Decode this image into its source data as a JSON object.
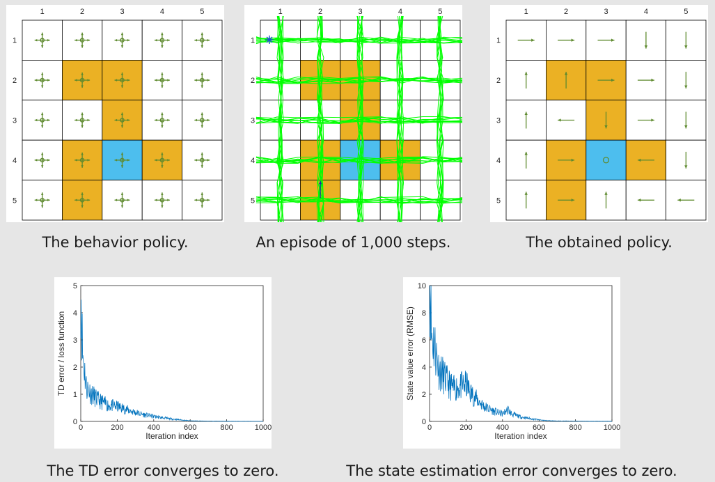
{
  "colors": {
    "forbidden": "#EBB124",
    "target": "#4DBEEE",
    "arrow": "#5E8A2E",
    "trajectory": "#00FF00",
    "curve": "#0072BD",
    "background": "#E6E6E6",
    "grid_line": "#000000"
  },
  "grid": {
    "size": 5,
    "col_labels": [
      "1",
      "2",
      "3",
      "4",
      "5"
    ],
    "row_labels": [
      "1",
      "2",
      "3",
      "4",
      "5"
    ],
    "forbidden_cells": [
      [
        2,
        2
      ],
      [
        2,
        3
      ],
      [
        3,
        3
      ],
      [
        4,
        2
      ],
      [
        4,
        4
      ],
      [
        5,
        2
      ]
    ],
    "target_cell": [
      4,
      3
    ]
  },
  "panels": {
    "behavior": {
      "caption": "The behavior policy."
    },
    "episode": {
      "caption": "An episode of 1,000 steps."
    },
    "obtained": {
      "caption": "The obtained policy.",
      "policy": [
        [
          "right",
          "right",
          "right",
          "down",
          "down"
        ],
        [
          "up",
          "up",
          "right",
          "right",
          "down"
        ],
        [
          "up",
          "left",
          "down",
          "right",
          "down"
        ],
        [
          "up",
          "right",
          "stay",
          "left",
          "down"
        ],
        [
          "up",
          "right",
          "up",
          "left",
          "left"
        ]
      ]
    }
  },
  "charts": {
    "td": {
      "caption": "The TD error converges to zero."
    },
    "rmse": {
      "caption": "The state estimation error converges to zero."
    }
  },
  "chart_data": [
    {
      "type": "line",
      "xlabel": "Iteration index",
      "ylabel": "TD error / loss function",
      "xlim": [
        0,
        1000
      ],
      "ylim": [
        0,
        5
      ],
      "xticks": [
        "0",
        "200",
        "400",
        "600",
        "800",
        "1000"
      ],
      "yticks": [
        "0",
        "1",
        "2",
        "3",
        "4",
        "5"
      ],
      "x": [
        0,
        10,
        20,
        30,
        50,
        80,
        100,
        150,
        200,
        250,
        300,
        350,
        400,
        450,
        500,
        550,
        600,
        700,
        800,
        900,
        1000
      ],
      "values": [
        4.8,
        2.3,
        1.8,
        1.2,
        1.0,
        0.8,
        0.7,
        0.55,
        0.5,
        0.4,
        0.3,
        0.22,
        0.17,
        0.12,
        0.08,
        0.05,
        0.02,
        0.01,
        0.005,
        0.003,
        0.002
      ]
    },
    {
      "type": "line",
      "xlabel": "Iteration index",
      "ylabel": "State value error (RMSE)",
      "xlim": [
        0,
        1000
      ],
      "ylim": [
        0,
        10
      ],
      "xticks": [
        "0",
        "200",
        "400",
        "600",
        "800",
        "1000"
      ],
      "yticks": [
        "0",
        "2",
        "4",
        "6",
        "8",
        "10"
      ],
      "x": [
        0,
        5,
        10,
        20,
        30,
        50,
        80,
        100,
        130,
        150,
        180,
        200,
        220,
        250,
        300,
        350,
        400,
        430,
        450,
        500,
        550,
        600,
        650,
        700,
        800,
        900,
        1000
      ],
      "values": [
        9.7,
        9.5,
        6.0,
        5.5,
        5.0,
        3.6,
        3.0,
        2.6,
        2.2,
        2.3,
        2.4,
        2.5,
        2.0,
        1.6,
        1.0,
        0.7,
        0.5,
        0.8,
        0.5,
        0.3,
        0.2,
        0.1,
        0.05,
        0.03,
        0.02,
        0.01,
        0.01
      ]
    }
  ]
}
